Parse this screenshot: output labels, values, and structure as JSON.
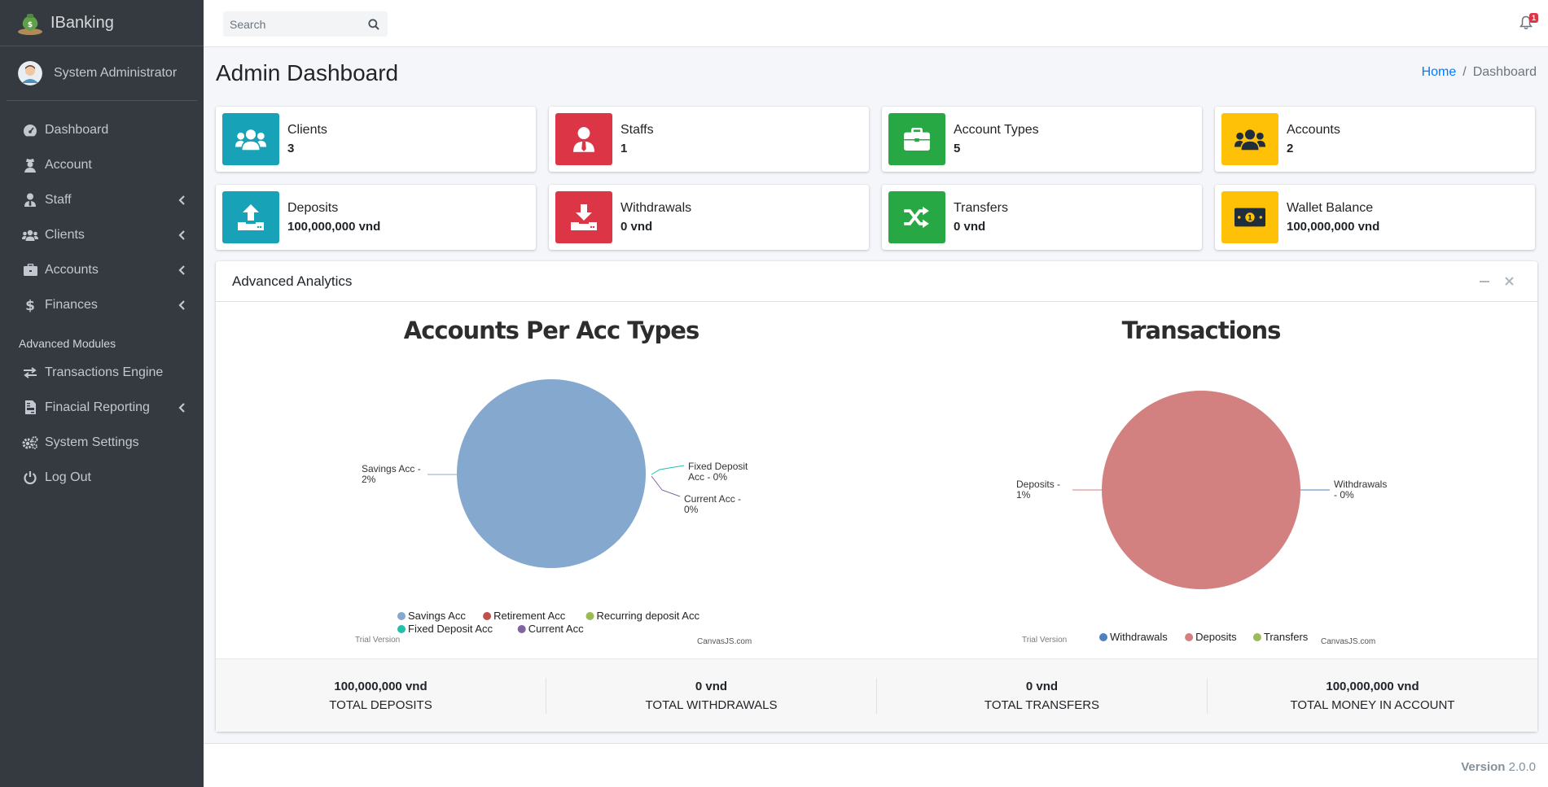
{
  "brand": {
    "name": "IBanking"
  },
  "user": {
    "name": "System Administrator"
  },
  "sidebar": {
    "items": [
      {
        "label": "Dashboard",
        "icon": "tachometer-icon",
        "chevron": false
      },
      {
        "label": "Account",
        "icon": "user-secret-icon",
        "chevron": false
      },
      {
        "label": "Staff",
        "icon": "user-tie-icon",
        "chevron": true
      },
      {
        "label": "Clients",
        "icon": "users-icon",
        "chevron": true
      },
      {
        "label": "Accounts",
        "icon": "briefcase-icon",
        "chevron": true
      },
      {
        "label": "Finances",
        "icon": "dollar-icon",
        "chevron": true
      }
    ],
    "header": "Advanced Modules",
    "modules": [
      {
        "label": "Transactions Engine",
        "icon": "exchange-icon",
        "chevron": false
      },
      {
        "label": "Finacial Reporting",
        "icon": "file-invoice-icon",
        "chevron": true
      },
      {
        "label": "System Settings",
        "icon": "cogs-icon",
        "chevron": false
      },
      {
        "label": "Log Out",
        "icon": "power-off-icon",
        "chevron": false
      }
    ]
  },
  "topbar": {
    "search_placeholder": "Search",
    "notification_count": "1"
  },
  "page": {
    "title": "Admin Dashboard"
  },
  "breadcrumb": {
    "home": "Home",
    "separator": "/",
    "current": "Dashboard"
  },
  "info_boxes": [
    {
      "label": "Clients",
      "value": "3",
      "color": "#17a2b8",
      "icon": "users-icon"
    },
    {
      "label": "Staffs",
      "value": "1",
      "color": "#dc3545",
      "icon": "user-tie-icon"
    },
    {
      "label": "Account Types",
      "value": "5",
      "color": "#28a745",
      "icon": "briefcase-icon"
    },
    {
      "label": "Accounts",
      "value": "2",
      "color": "#ffc107",
      "icon": "users-icon"
    },
    {
      "label": "Deposits",
      "value": "100,000,000 vnd",
      "color": "#17a2b8",
      "icon": "upload-icon"
    },
    {
      "label": "Withdrawals",
      "value": "0 vnd",
      "color": "#dc3545",
      "icon": "download-icon"
    },
    {
      "label": "Transfers",
      "value": "0 vnd",
      "color": "#28a745",
      "icon": "random-icon"
    },
    {
      "label": "Wallet Balance",
      "value": "100,000,000 vnd",
      "color": "#ffc107",
      "icon": "money-bill-icon"
    }
  ],
  "analytics": {
    "title": "Advanced Analytics",
    "minimize_label": "–",
    "close_label": "×"
  },
  "chart_data": [
    {
      "type": "pie",
      "title": "Accounts Per Acc Types",
      "slices": [
        {
          "name": "Savings Acc",
          "value": 2,
          "label": "Savings Acc - 2%",
          "color": "#85a8cf"
        },
        {
          "name": "Retirement Acc",
          "value": 0,
          "label": "",
          "color": "#c0504e"
        },
        {
          "name": "Recurring deposit Acc",
          "value": 0,
          "label": "",
          "color": "#9bbb58"
        },
        {
          "name": "Fixed Deposit Acc",
          "value": 0,
          "label": "Fixed Deposit Acc - 0%",
          "color": "#23bfaa"
        },
        {
          "name": "Current Acc",
          "value": 0,
          "label": "Current Acc - 0%",
          "color": "#8064a1"
        }
      ],
      "legend": [
        "Savings Acc",
        "Retirement Acc",
        "Recurring deposit Acc",
        "Fixed Deposit Acc",
        "Current Acc"
      ],
      "legend_placement": "bottom",
      "watermark": "Trial Version",
      "credit": "CanvasJS.com"
    },
    {
      "type": "pie",
      "title": "Transactions",
      "slices": [
        {
          "name": "Withdrawals",
          "value": 0,
          "label": "Withdrawals - 0%",
          "color": "#4f81bc"
        },
        {
          "name": "Deposits",
          "value": 1,
          "label": "Deposits - 1%",
          "color": "#d38080"
        },
        {
          "name": "Transfers",
          "value": 0,
          "label": "",
          "color": "#9bbb58"
        }
      ],
      "legend": [
        "Withdrawals",
        "Deposits",
        "Transfers"
      ],
      "legend_placement": "bottom",
      "watermark": "Trial Version",
      "credit": "CanvasJS.com"
    }
  ],
  "totals": [
    {
      "value": "100,000,000 vnd",
      "label": "TOTAL DEPOSITS"
    },
    {
      "value": "0 vnd",
      "label": "TOTAL WITHDRAWALS"
    },
    {
      "value": "0 vnd",
      "label": "TOTAL TRANSFERS"
    },
    {
      "value": "100,000,000 vnd",
      "label": "TOTAL MONEY IN ACCOUNT"
    }
  ],
  "footer": {
    "version_label": "Version",
    "version_number": "2.0.0"
  }
}
